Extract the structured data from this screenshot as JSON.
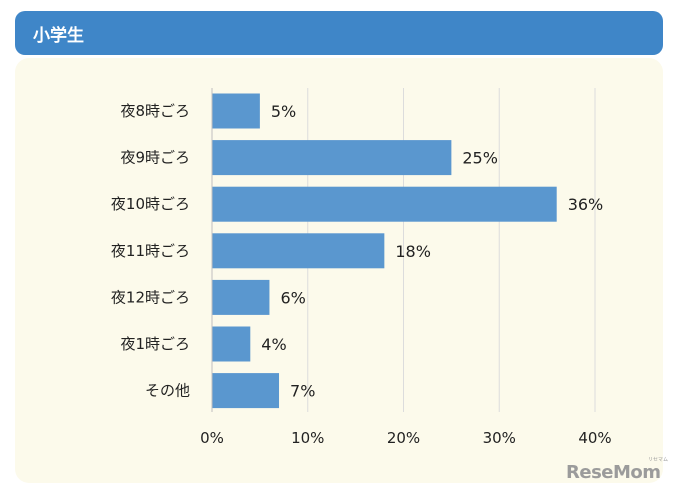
{
  "header": {
    "title": "小学生"
  },
  "chart_data": {
    "type": "bar",
    "orientation": "horizontal",
    "categories": [
      "夜8時ごろ",
      "夜9時ごろ",
      "夜10時ごろ",
      "夜11時ごろ",
      "夜12時ごろ",
      "夜1時ごろ",
      "その他"
    ],
    "values": [
      5,
      25,
      36,
      18,
      6,
      4,
      7
    ],
    "value_labels": [
      "5%",
      "25%",
      "36%",
      "18%",
      "6%",
      "4%",
      "7%"
    ],
    "xlim": [
      0,
      40
    ],
    "xticks": [
      0,
      10,
      20,
      30,
      40
    ],
    "xtick_labels": [
      "0%",
      "10%",
      "20%",
      "30%",
      "40%"
    ],
    "grid": "vertical",
    "title": "",
    "xlabel": "",
    "ylabel": "",
    "colors": {
      "bar": "#5a97cf",
      "header": "#3f86c8",
      "panel": "#fcfaeb",
      "grid": "#dcdcdc",
      "text": "#222222"
    }
  },
  "watermark": {
    "logo": "ReseMom",
    "sub": "リセマム"
  }
}
